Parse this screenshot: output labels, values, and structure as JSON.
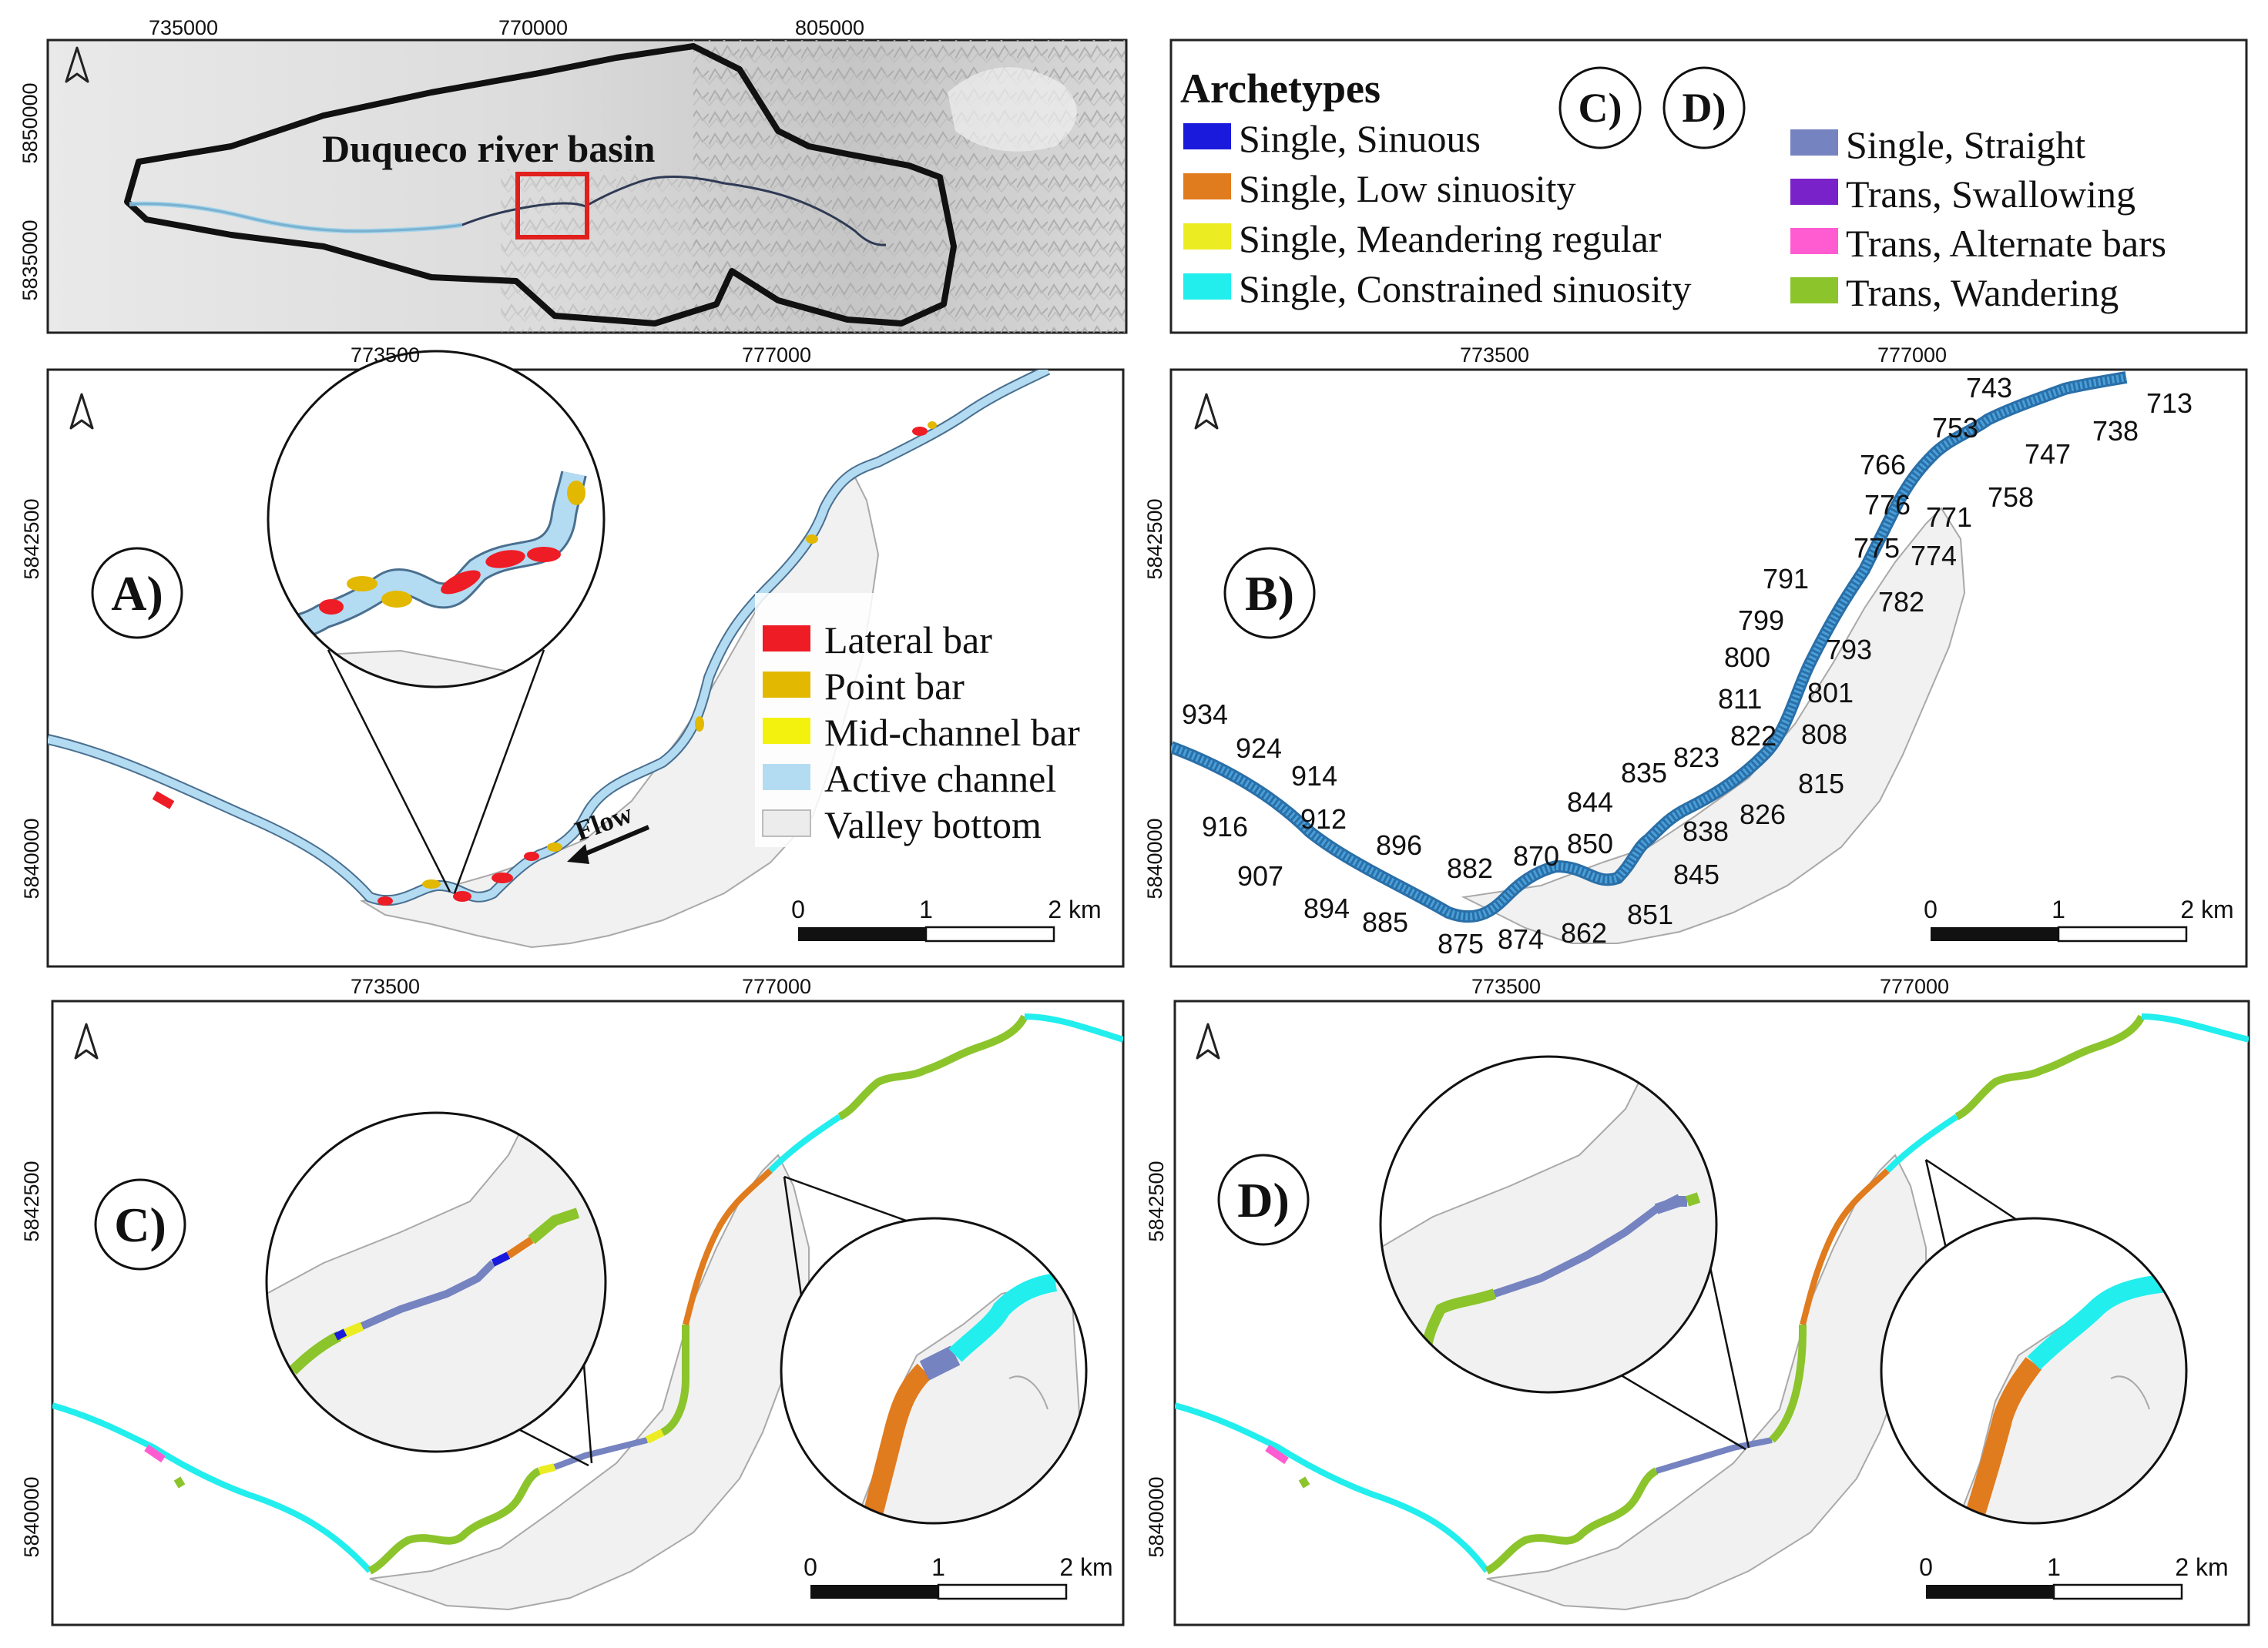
{
  "overview": {
    "title": "Duqueco river basin",
    "x_ticks": [
      "735000",
      "770000",
      "805000"
    ],
    "y_ticks": [
      "5850000",
      "5835000"
    ]
  },
  "archetypes_legend": {
    "title": "Archetypes",
    "panel_refs": [
      "C)",
      "D)"
    ],
    "items": [
      {
        "label": "Single, Sinuous",
        "color": "#1a1adc"
      },
      {
        "label": "Single, Low sinuosity",
        "color": "#e07b1e"
      },
      {
        "label": "Single, Meandering regular",
        "color": "#ecec22"
      },
      {
        "label": "Single, Constrained sinuosity",
        "color": "#22eeee"
      },
      {
        "label": "Single, Straight",
        "color": "#7583c0"
      },
      {
        "label": "Trans, Swallowing",
        "color": "#7a22c9"
      },
      {
        "label": "Trans, Alternate bars",
        "color": "#ff5cd2"
      },
      {
        "label": "Trans, Wandering",
        "color": "#8cc42c"
      }
    ]
  },
  "panel_a": {
    "label": "A)",
    "x_ticks": [
      "773500",
      "777000"
    ],
    "y_ticks": [
      "5842500",
      "5840000"
    ],
    "flow_label": "Flow",
    "legend": [
      {
        "label": "Lateral bar",
        "color": "#ee1c25"
      },
      {
        "label": "Point bar",
        "color": "#e2b800"
      },
      {
        "label": "Mid-channel bar",
        "color": "#f2f20e"
      },
      {
        "label": "Active channel",
        "color": "#b3dcf3"
      },
      {
        "label": "Valley bottom",
        "color": "#ececec"
      }
    ],
    "scalebar": [
      "0",
      "1",
      "2 km"
    ]
  },
  "panel_b": {
    "label": "B)",
    "x_ticks": [
      "773500",
      "777000"
    ],
    "y_ticks": [
      "5842500",
      "5840000"
    ],
    "segment_ids": [
      "713",
      "738",
      "743",
      "747",
      "753",
      "758",
      "766",
      "771",
      "774",
      "775",
      "776",
      "782",
      "791",
      "793",
      "799",
      "800",
      "801",
      "808",
      "811",
      "815",
      "822",
      "823",
      "826",
      "835",
      "838",
      "844",
      "845",
      "850",
      "851",
      "862",
      "870",
      "874",
      "875",
      "882",
      "885",
      "894",
      "896",
      "907",
      "912",
      "914",
      "916",
      "924",
      "934"
    ],
    "scalebar": [
      "0",
      "1",
      "2 km"
    ]
  },
  "panel_c": {
    "label": "C)",
    "x_ticks": [
      "773500",
      "777000"
    ],
    "y_ticks": [
      "5842500",
      "5840000"
    ],
    "scalebar": [
      "0",
      "1",
      "2 km"
    ]
  },
  "panel_d": {
    "label": "D)",
    "x_ticks": [
      "773500",
      "777000"
    ],
    "y_ticks": [
      "5842500",
      "5840000"
    ],
    "scalebar": [
      "0",
      "1",
      "2 km"
    ]
  },
  "colors": {
    "valley": "#f1f1f1",
    "valley_edge": "#a9a9a9",
    "channel": "#b3dcf3",
    "channel_edge": "#4a6f8f",
    "segment_blue": "#4a9fd8",
    "hillshade": "#d3d3d3",
    "highlight_box": "#e0201c"
  }
}
